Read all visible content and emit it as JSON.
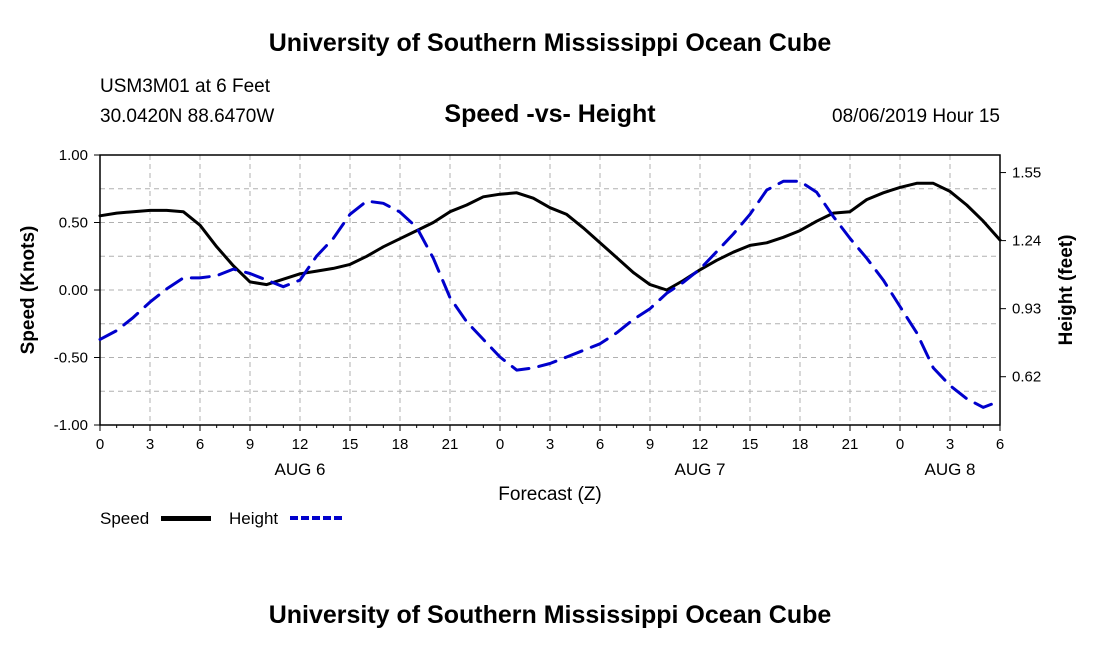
{
  "page": {
    "top_title": "University of Southern Mississippi Ocean Cube",
    "bottom_title": "University of Southern Mississippi Ocean Cube",
    "station": "USM3M01 at 6 Feet",
    "coords": "30.0420N 88.6470W",
    "datetime": "08/06/2019 Hour 15"
  },
  "colors": {
    "speed": "#000000",
    "height": "#0000cc",
    "grid": "#b0b0b0"
  },
  "chart_data": {
    "type": "line",
    "title": "Speed -vs- Height",
    "xlabel": "Forecast (Z)",
    "ylabel": "Speed (Knots)",
    "y2label": "Height (feet)",
    "xlim": [
      0,
      54
    ],
    "ylim": [
      -1.0,
      1.0
    ],
    "y2lim": [
      0.4,
      1.63
    ],
    "x_ticks": [
      0,
      3,
      6,
      9,
      12,
      15,
      18,
      21,
      24,
      27,
      30,
      33,
      36,
      39,
      42,
      45,
      48,
      51,
      54
    ],
    "x_tick_labels": [
      "0",
      "3",
      "6",
      "9",
      "12",
      "15",
      "18",
      "21",
      "0",
      "3",
      "6",
      "9",
      "12",
      "15",
      "18",
      "21",
      "0",
      "3",
      "6"
    ],
    "day_labels": [
      {
        "x": 12,
        "label": "AUG 6"
      },
      {
        "x": 36,
        "label": "AUG 7"
      },
      {
        "x": 51,
        "label": "AUG 8"
      }
    ],
    "y_ticks": [
      -1.0,
      -0.5,
      0.0,
      0.5,
      1.0
    ],
    "y_tick_labels": [
      "-1.00",
      "-0.50",
      "0.00",
      "0.50",
      "1.00"
    ],
    "y2_ticks": [
      0.62,
      0.93,
      1.24,
      1.55
    ],
    "y2_tick_labels": [
      "0.62",
      "0.93",
      "1.24",
      "1.55"
    ],
    "grid": true,
    "legend": {
      "placement": "bottom-left",
      "entries": [
        "Speed",
        "Height"
      ]
    },
    "series": [
      {
        "name": "Speed",
        "axis": "left",
        "style": "solid",
        "x": [
          0,
          1,
          2,
          3,
          4,
          5,
          6,
          7,
          8,
          9,
          10,
          11,
          12,
          13,
          14,
          15,
          16,
          17,
          18,
          19,
          20,
          21,
          22,
          23,
          24,
          25,
          26,
          27,
          28,
          29,
          30,
          31,
          32,
          33,
          34,
          35,
          36,
          37,
          38,
          39,
          40,
          41,
          42,
          43,
          44,
          45,
          46,
          47,
          48,
          49,
          50,
          51,
          52,
          53,
          54
        ],
        "values": [
          0.55,
          0.57,
          0.58,
          0.59,
          0.59,
          0.58,
          0.48,
          0.32,
          0.18,
          0.06,
          0.04,
          0.08,
          0.12,
          0.14,
          0.16,
          0.19,
          0.25,
          0.32,
          0.38,
          0.44,
          0.5,
          0.58,
          0.63,
          0.69,
          0.71,
          0.72,
          0.68,
          0.61,
          0.56,
          0.46,
          0.35,
          0.24,
          0.13,
          0.04,
          0.0,
          0.07,
          0.15,
          0.22,
          0.28,
          0.33,
          0.35,
          0.39,
          0.44,
          0.51,
          0.57,
          0.58,
          0.67,
          0.72,
          0.76,
          0.79,
          0.79,
          0.73,
          0.63,
          0.51,
          0.37
        ]
      },
      {
        "name": "Height",
        "axis": "right",
        "style": "dashed",
        "x": [
          0,
          1,
          2,
          3,
          4,
          5,
          6,
          7,
          8,
          9,
          10,
          11,
          12,
          13,
          14,
          15,
          16,
          17,
          18,
          19,
          20,
          21,
          22,
          23,
          24,
          25,
          26,
          27,
          28,
          29,
          30,
          31,
          32,
          33,
          34,
          35,
          36,
          37,
          38,
          39,
          40,
          41,
          42,
          43,
          44,
          45,
          46,
          47,
          48,
          49,
          50,
          51,
          52,
          53,
          54
        ],
        "values": [
          0.79,
          0.83,
          0.89,
          0.96,
          1.02,
          1.07,
          1.07,
          1.08,
          1.11,
          1.09,
          1.06,
          1.03,
          1.06,
          1.17,
          1.25,
          1.36,
          1.42,
          1.41,
          1.37,
          1.3,
          1.16,
          0.98,
          0.87,
          0.79,
          0.71,
          0.65,
          0.66,
          0.68,
          0.71,
          0.74,
          0.77,
          0.82,
          0.88,
          0.93,
          1.0,
          1.05,
          1.11,
          1.19,
          1.27,
          1.36,
          1.47,
          1.51,
          1.51,
          1.46,
          1.35,
          1.25,
          1.16,
          1.06,
          0.94,
          0.82,
          0.66,
          0.58,
          0.52,
          0.48,
          0.51
        ]
      }
    ]
  }
}
